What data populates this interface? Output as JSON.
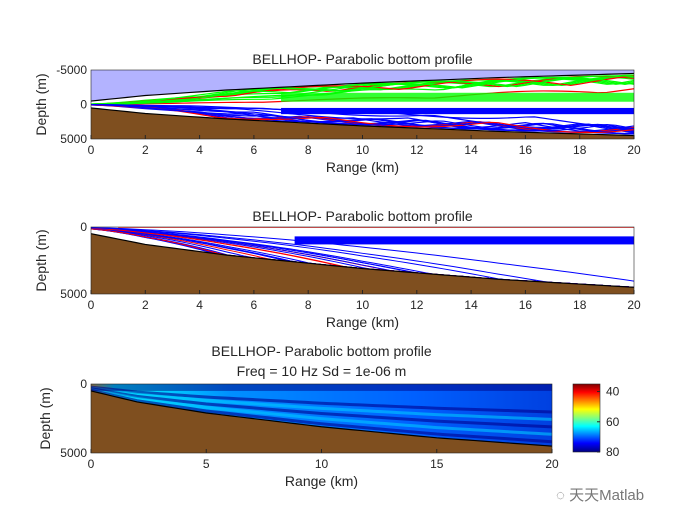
{
  "chart_data": [
    {
      "type": "line",
      "title": "BELLHOP- Parabolic bottom profile",
      "xlabel": "Range (km)",
      "ylabel": "Depth (m)",
      "xlim": [
        0,
        20
      ],
      "ylim": [
        -5000,
        5000
      ],
      "y_reversed": true,
      "xticks": [
        "0",
        "2",
        "4",
        "6",
        "8",
        "10",
        "12",
        "14",
        "16",
        "18",
        "20"
      ],
      "yticks": [
        "-5000",
        "0",
        "5000"
      ],
      "bathymetry": {
        "range_km": [
          0,
          2,
          5,
          10,
          15,
          20
        ],
        "depth_m": [
          500,
          1300,
          2100,
          3100,
          3900,
          4500
        ]
      },
      "ray_colors": {
        "surface_reflected": "#00ff00",
        "direct": "#ff0000",
        "bottom_reflected": "#0000ff",
        "bottom": "#7f4f1f",
        "mirror": "#b3b3ff"
      },
      "grid": false
    },
    {
      "type": "line",
      "title": "BELLHOP- Parabolic bottom profile",
      "xlabel": "Range (km)",
      "ylabel": "Depth (m)",
      "xlim": [
        0,
        20
      ],
      "ylim": [
        0,
        5000
      ],
      "y_reversed": true,
      "xticks": [
        "0",
        "2",
        "4",
        "6",
        "8",
        "10",
        "12",
        "14",
        "16",
        "18",
        "20"
      ],
      "yticks": [
        "0",
        "5000"
      ],
      "bathymetry": {
        "range_km": [
          0,
          2,
          5,
          10,
          15,
          20
        ],
        "depth_m": [
          500,
          1300,
          2100,
          3100,
          3900,
          4500
        ]
      },
      "grid": false
    },
    {
      "type": "heatmap",
      "title": "BELLHOP- Parabolic bottom profile",
      "subtitle": "Freq = 10 Hz    Sd = 1e-06 m",
      "xlabel": "Range (km)",
      "ylabel": "Depth (m)",
      "xlim": [
        0,
        20
      ],
      "ylim": [
        0,
        5000
      ],
      "y_reversed": true,
      "xticks": [
        "0",
        "5",
        "10",
        "15",
        "20"
      ],
      "yticks": [
        "0",
        "5000"
      ],
      "colorbar": {
        "ticks": [
          "40",
          "60",
          "80"
        ],
        "range": [
          35,
          80
        ],
        "reversed": true,
        "colormap": "jet"
      },
      "bathymetry": {
        "range_km": [
          0,
          2,
          5,
          10,
          15,
          20
        ],
        "depth_m": [
          500,
          1300,
          2100,
          3100,
          3900,
          4500
        ]
      }
    }
  ],
  "watermark": "天天Matlab"
}
